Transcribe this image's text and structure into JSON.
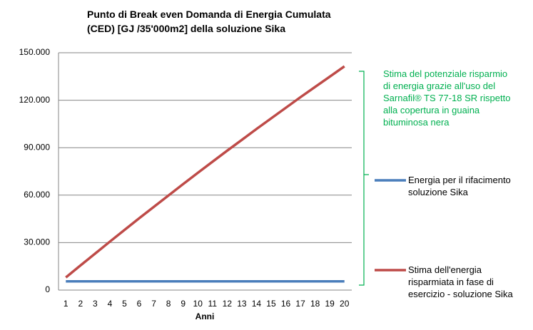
{
  "chart_data": {
    "type": "line",
    "title": "Punto di Break even Domanda di Energia Cumulata (CED) [GJ /35'000m2] della soluzione Sika",
    "x_label": "Anni",
    "categories": [
      "1",
      "2",
      "3",
      "4",
      "5",
      "6",
      "7",
      "8",
      "9",
      "10",
      "11",
      "12",
      "13",
      "14",
      "15",
      "16",
      "17",
      "18",
      "19",
      "20"
    ],
    "series": [
      {
        "name": "Energia per il rifacimento soluzione Sika",
        "color": "#4a7ebb",
        "values": [
          5500,
          5500,
          5500,
          5500,
          5500,
          5500,
          5500,
          5500,
          5500,
          5500,
          5500,
          5500,
          5500,
          5500,
          5500,
          5500,
          5500,
          5500,
          5500,
          5500
        ]
      },
      {
        "name": "Stima dell'energia risparmiata in fase di esercizio - soluzione Sika",
        "color": "#be4b48",
        "values": [
          8000,
          15600,
          23100,
          30600,
          38000,
          45400,
          52600,
          59800,
          67000,
          74100,
          81100,
          88100,
          94900,
          101800,
          108500,
          115200,
          121900,
          128400,
          134900,
          141400
        ]
      }
    ],
    "annotation": [
      "Stima del potenziale risparmio",
      "di energia grazie all'uso del",
      "Sarnafil® TS 77-18 SR rispetto",
      "alla copertura in guaina",
      "bituminosa nera"
    ],
    "ylim": [
      0,
      150000
    ],
    "yticks": [
      {
        "value": 0,
        "label": "0"
      },
      {
        "value": 30000,
        "label": "30.000"
      },
      {
        "value": 60000,
        "label": "60.000"
      },
      {
        "value": 90000,
        "label": "90.000"
      },
      {
        "value": 120000,
        "label": "120.000"
      },
      {
        "value": 150000,
        "label": "150.000"
      }
    ],
    "grid": true
  }
}
